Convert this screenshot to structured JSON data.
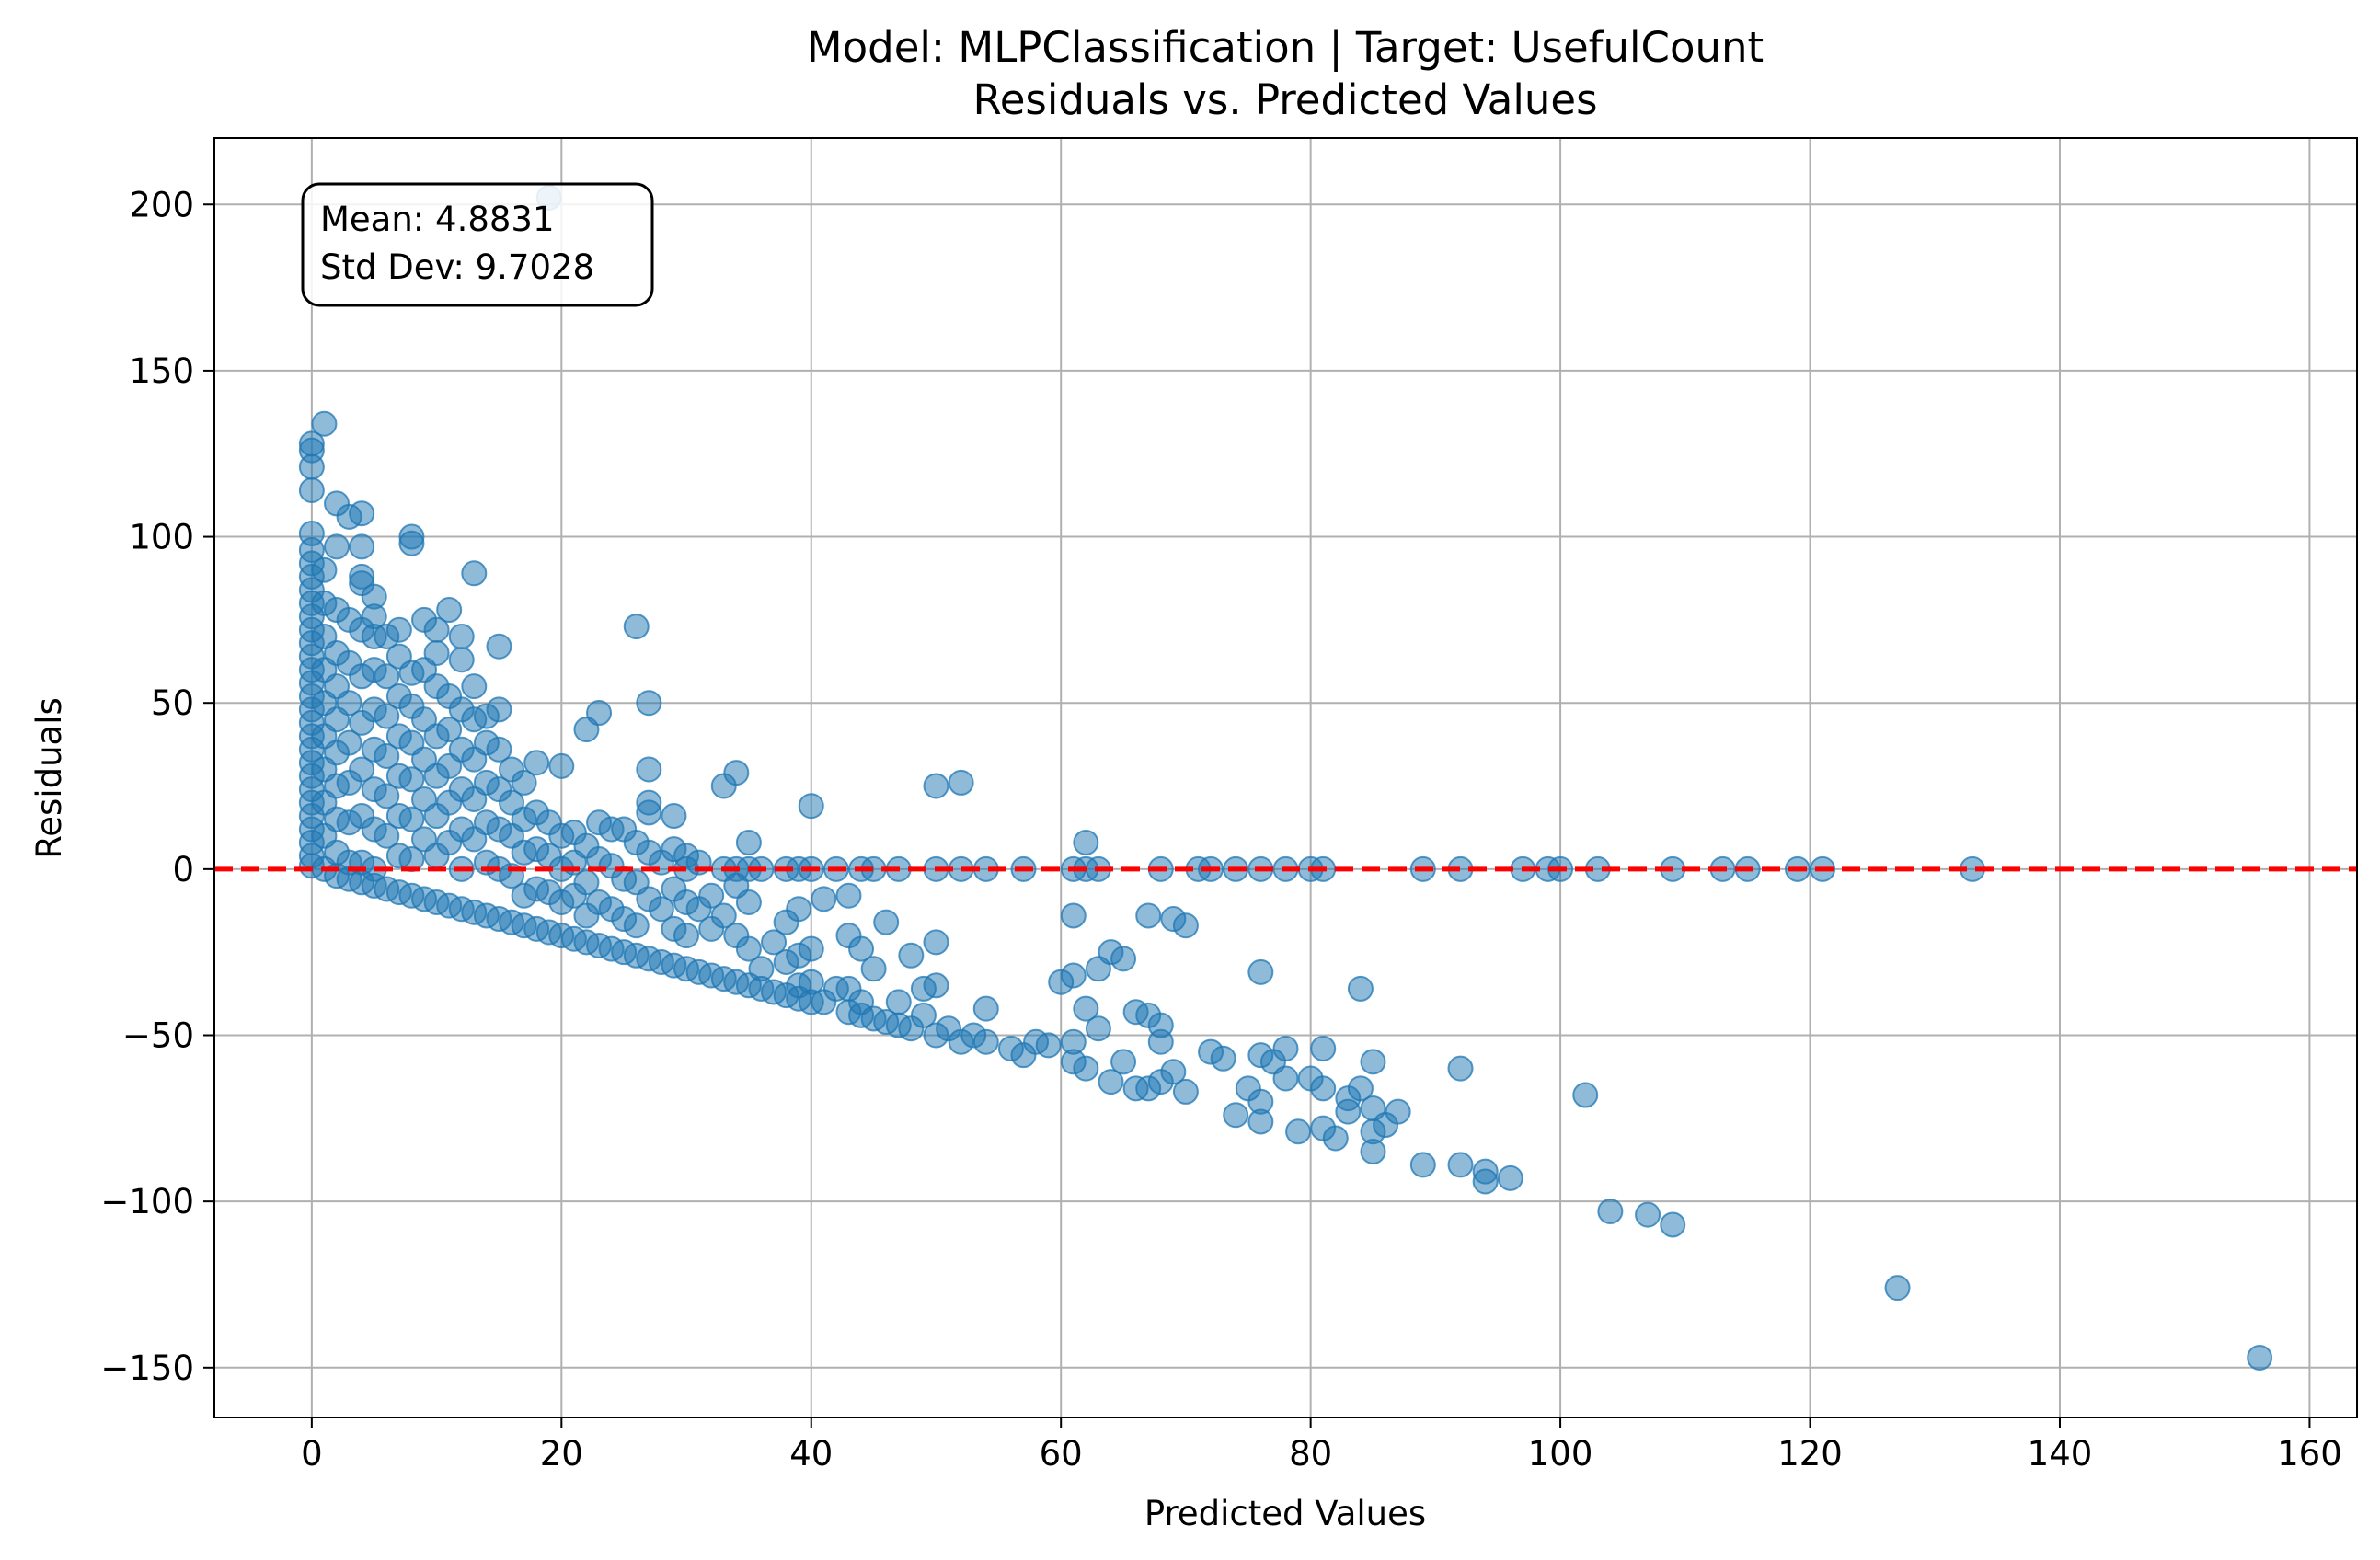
{
  "chart_data": {
    "type": "scatter",
    "title": "Model: MLPClassification | Target: UsefulCount",
    "subtitle": "Residuals vs. Predicted Values",
    "xlabel": "Predicted Values",
    "ylabel": "Residuals",
    "xlim": [
      -7.8,
      163.8
    ],
    "ylim": [
      -165,
      220
    ],
    "xticks": [
      0,
      20,
      40,
      60,
      80,
      100,
      120,
      140,
      160
    ],
    "yticks": [
      -150,
      -100,
      -50,
      0,
      50,
      100,
      150,
      200
    ],
    "xtick_labels": [
      "0",
      "20",
      "40",
      "60",
      "80",
      "100",
      "120",
      "140",
      "160"
    ],
    "ytick_labels": [
      "−150",
      "−100",
      "−50",
      "0",
      "50",
      "100",
      "150",
      "200"
    ],
    "grid": true,
    "reference_line": {
      "y": 0,
      "style": "dashed",
      "color": "#ff0000"
    },
    "annotation": {
      "line1": "Mean: 4.8831",
      "line2": "Std Dev: 9.7028",
      "placement": "top-left"
    },
    "marker_color": "#1f77b4",
    "marker_alpha": 0.5,
    "points": [
      [
        0,
        128
      ],
      [
        0,
        126
      ],
      [
        0,
        121
      ],
      [
        0,
        114
      ],
      [
        0,
        101
      ],
      [
        0,
        96
      ],
      [
        0,
        92
      ],
      [
        0,
        88
      ],
      [
        0,
        84
      ],
      [
        0,
        80
      ],
      [
        0,
        76
      ],
      [
        0,
        72
      ],
      [
        0,
        68
      ],
      [
        0,
        64
      ],
      [
        0,
        60
      ],
      [
        0,
        56
      ],
      [
        0,
        52
      ],
      [
        0,
        48
      ],
      [
        0,
        44
      ],
      [
        0,
        40
      ],
      [
        0,
        36
      ],
      [
        0,
        32
      ],
      [
        0,
        28
      ],
      [
        0,
        24
      ],
      [
        0,
        20
      ],
      [
        0,
        16
      ],
      [
        0,
        12
      ],
      [
        0,
        8
      ],
      [
        0,
        4
      ],
      [
        0,
        1
      ],
      [
        1,
        134
      ],
      [
        1,
        90
      ],
      [
        1,
        80
      ],
      [
        1,
        70
      ],
      [
        1,
        60
      ],
      [
        1,
        50
      ],
      [
        1,
        40
      ],
      [
        1,
        30
      ],
      [
        1,
        20
      ],
      [
        1,
        10
      ],
      [
        1,
        0
      ],
      [
        2,
        110
      ],
      [
        2,
        97
      ],
      [
        2,
        78
      ],
      [
        2,
        65
      ],
      [
        2,
        55
      ],
      [
        2,
        45
      ],
      [
        2,
        35
      ],
      [
        2,
        25
      ],
      [
        2,
        15
      ],
      [
        2,
        5
      ],
      [
        2,
        -2
      ],
      [
        3,
        106
      ],
      [
        3,
        75
      ],
      [
        3,
        62
      ],
      [
        3,
        50
      ],
      [
        3,
        38
      ],
      [
        3,
        26
      ],
      [
        3,
        14
      ],
      [
        3,
        2
      ],
      [
        3,
        -3
      ],
      [
        4,
        107
      ],
      [
        4,
        97
      ],
      [
        4,
        88
      ],
      [
        4,
        86
      ],
      [
        4,
        72
      ],
      [
        4,
        58
      ],
      [
        4,
        44
      ],
      [
        4,
        30
      ],
      [
        4,
        16
      ],
      [
        4,
        2
      ],
      [
        4,
        -4
      ],
      [
        5,
        82
      ],
      [
        5,
        76
      ],
      [
        5,
        70
      ],
      [
        5,
        60
      ],
      [
        5,
        48
      ],
      [
        5,
        36
      ],
      [
        5,
        24
      ],
      [
        5,
        12
      ],
      [
        5,
        0
      ],
      [
        5,
        -5
      ],
      [
        6,
        70
      ],
      [
        6,
        58
      ],
      [
        6,
        46
      ],
      [
        6,
        34
      ],
      [
        6,
        22
      ],
      [
        6,
        10
      ],
      [
        6,
        -6
      ],
      [
        7,
        72
      ],
      [
        7,
        64
      ],
      [
        7,
        52
      ],
      [
        7,
        40
      ],
      [
        7,
        28
      ],
      [
        7,
        16
      ],
      [
        7,
        4
      ],
      [
        7,
        -7
      ],
      [
        8,
        100
      ],
      [
        8,
        98
      ],
      [
        8,
        59
      ],
      [
        8,
        49
      ],
      [
        8,
        38
      ],
      [
        8,
        27
      ],
      [
        8,
        15
      ],
      [
        8,
        3
      ],
      [
        8,
        -8
      ],
      [
        9,
        75
      ],
      [
        9,
        60
      ],
      [
        9,
        45
      ],
      [
        9,
        33
      ],
      [
        9,
        21
      ],
      [
        9,
        9
      ],
      [
        9,
        -9
      ],
      [
        10,
        72
      ],
      [
        10,
        65
      ],
      [
        10,
        55
      ],
      [
        10,
        40
      ],
      [
        10,
        28
      ],
      [
        10,
        16
      ],
      [
        10,
        4
      ],
      [
        10,
        -10
      ],
      [
        11,
        78
      ],
      [
        11,
        52
      ],
      [
        11,
        42
      ],
      [
        11,
        31
      ],
      [
        11,
        20
      ],
      [
        11,
        8
      ],
      [
        11,
        -11
      ],
      [
        12,
        70
      ],
      [
        12,
        63
      ],
      [
        12,
        48
      ],
      [
        12,
        36
      ],
      [
        12,
        24
      ],
      [
        12,
        12
      ],
      [
        12,
        0
      ],
      [
        12,
        -12
      ],
      [
        13,
        89
      ],
      [
        13,
        55
      ],
      [
        13,
        45
      ],
      [
        13,
        33
      ],
      [
        13,
        21
      ],
      [
        13,
        9
      ],
      [
        13,
        -13
      ],
      [
        14,
        46
      ],
      [
        14,
        38
      ],
      [
        14,
        26
      ],
      [
        14,
        14
      ],
      [
        14,
        2
      ],
      [
        14,
        -14
      ],
      [
        15,
        67
      ],
      [
        15,
        48
      ],
      [
        15,
        36
      ],
      [
        15,
        24
      ],
      [
        15,
        12
      ],
      [
        15,
        0
      ],
      [
        15,
        -15
      ],
      [
        16,
        30
      ],
      [
        16,
        20
      ],
      [
        16,
        10
      ],
      [
        16,
        -2
      ],
      [
        16,
        -16
      ],
      [
        17,
        26
      ],
      [
        17,
        15
      ],
      [
        17,
        5
      ],
      [
        17,
        -8
      ],
      [
        17,
        -17
      ],
      [
        18,
        32
      ],
      [
        18,
        17
      ],
      [
        18,
        6
      ],
      [
        18,
        -6
      ],
      [
        18,
        -18
      ],
      [
        19,
        202
      ],
      [
        19,
        14
      ],
      [
        19,
        4
      ],
      [
        19,
        -7
      ],
      [
        19,
        -19
      ],
      [
        20,
        31
      ],
      [
        20,
        10
      ],
      [
        20,
        0
      ],
      [
        20,
        -10
      ],
      [
        20,
        -20
      ],
      [
        21,
        11
      ],
      [
        21,
        2
      ],
      [
        21,
        -8
      ],
      [
        21,
        -21
      ],
      [
        22,
        42
      ],
      [
        22,
        7
      ],
      [
        22,
        -4
      ],
      [
        22,
        -14
      ],
      [
        22,
        -22
      ],
      [
        23,
        47
      ],
      [
        23,
        14
      ],
      [
        23,
        3
      ],
      [
        23,
        -10
      ],
      [
        23,
        -23
      ],
      [
        24,
        12
      ],
      [
        24,
        1
      ],
      [
        24,
        -12
      ],
      [
        24,
        -24
      ],
      [
        25,
        12
      ],
      [
        25,
        -3
      ],
      [
        25,
        -15
      ],
      [
        25,
        -25
      ],
      [
        26,
        73
      ],
      [
        26,
        8
      ],
      [
        26,
        -4
      ],
      [
        26,
        -17
      ],
      [
        26,
        -26
      ],
      [
        27,
        50
      ],
      [
        27,
        30
      ],
      [
        27,
        20
      ],
      [
        27,
        17
      ],
      [
        27,
        5
      ],
      [
        27,
        -9
      ],
      [
        27,
        -27
      ],
      [
        28,
        2
      ],
      [
        28,
        -12
      ],
      [
        28,
        -28
      ],
      [
        29,
        16
      ],
      [
        29,
        6
      ],
      [
        29,
        -6
      ],
      [
        29,
        -18
      ],
      [
        29,
        -29
      ],
      [
        30,
        4
      ],
      [
        30,
        0
      ],
      [
        30,
        -10
      ],
      [
        30,
        -20
      ],
      [
        30,
        -30
      ],
      [
        31,
        2
      ],
      [
        31,
        -12
      ],
      [
        31,
        -31
      ],
      [
        32,
        -8
      ],
      [
        32,
        -18
      ],
      [
        32,
        -32
      ],
      [
        33,
        25
      ],
      [
        33,
        0
      ],
      [
        33,
        -14
      ],
      [
        33,
        -33
      ],
      [
        34,
        29
      ],
      [
        34,
        0
      ],
      [
        34,
        -5
      ],
      [
        34,
        -20
      ],
      [
        34,
        -34
      ],
      [
        35,
        8
      ],
      [
        35,
        0
      ],
      [
        35,
        -10
      ],
      [
        35,
        -24
      ],
      [
        35,
        -35
      ],
      [
        36,
        0
      ],
      [
        36,
        -30
      ],
      [
        36,
        -36
      ],
      [
        37,
        -22
      ],
      [
        37,
        -37
      ],
      [
        38,
        0
      ],
      [
        38,
        -16
      ],
      [
        38,
        -28
      ],
      [
        38,
        -38
      ],
      [
        39,
        0
      ],
      [
        39,
        -12
      ],
      [
        39,
        -26
      ],
      [
        39,
        -35
      ],
      [
        39,
        -39
      ],
      [
        40,
        19
      ],
      [
        40,
        0
      ],
      [
        40,
        -24
      ],
      [
        40,
        -34
      ],
      [
        40,
        -40
      ],
      [
        41,
        -9
      ],
      [
        41,
        -40
      ],
      [
        42,
        0
      ],
      [
        42,
        -36
      ],
      [
        43,
        -8
      ],
      [
        43,
        -20
      ],
      [
        43,
        -36
      ],
      [
        43,
        -43
      ],
      [
        44,
        0
      ],
      [
        44,
        -24
      ],
      [
        44,
        -40
      ],
      [
        44,
        -44
      ],
      [
        45,
        0
      ],
      [
        45,
        -30
      ],
      [
        45,
        -45
      ],
      [
        46,
        -16
      ],
      [
        46,
        -46
      ],
      [
        47,
        0
      ],
      [
        47,
        -40
      ],
      [
        47,
        -47
      ],
      [
        48,
        -26
      ],
      [
        48,
        -48
      ],
      [
        49,
        -36
      ],
      [
        49,
        -44
      ],
      [
        50,
        25
      ],
      [
        50,
        0
      ],
      [
        50,
        -22
      ],
      [
        50,
        -35
      ],
      [
        50,
        -50
      ],
      [
        51,
        -48
      ],
      [
        52,
        26
      ],
      [
        52,
        0
      ],
      [
        52,
        -52
      ],
      [
        53,
        -50
      ],
      [
        54,
        0
      ],
      [
        54,
        -42
      ],
      [
        54,
        -52
      ],
      [
        56,
        -54
      ],
      [
        57,
        0
      ],
      [
        57,
        -56
      ],
      [
        58,
        -52
      ],
      [
        59,
        -53
      ],
      [
        60,
        -34
      ],
      [
        61,
        -14
      ],
      [
        61,
        0
      ],
      [
        61,
        -32
      ],
      [
        61,
        -58
      ],
      [
        61,
        -52
      ],
      [
        62,
        8
      ],
      [
        62,
        0
      ],
      [
        62,
        -42
      ],
      [
        62,
        -60
      ],
      [
        63,
        0
      ],
      [
        63,
        -30
      ],
      [
        63,
        -48
      ],
      [
        64,
        -25
      ],
      [
        64,
        -64
      ],
      [
        65,
        -27
      ],
      [
        65,
        -58
      ],
      [
        66,
        -43
      ],
      [
        66,
        -66
      ],
      [
        67,
        -14
      ],
      [
        67,
        -44
      ],
      [
        67,
        -66
      ],
      [
        68,
        0
      ],
      [
        68,
        -47
      ],
      [
        68,
        -52
      ],
      [
        68,
        -64
      ],
      [
        69,
        -15
      ],
      [
        69,
        -61
      ],
      [
        70,
        -17
      ],
      [
        70,
        -67
      ],
      [
        71,
        0
      ],
      [
        72,
        0
      ],
      [
        72,
        -55
      ],
      [
        73,
        -57
      ],
      [
        74,
        0
      ],
      [
        74,
        -74
      ],
      [
        75,
        -66
      ],
      [
        76,
        -31
      ],
      [
        76,
        0
      ],
      [
        76,
        -56
      ],
      [
        76,
        -70
      ],
      [
        76,
        -76
      ],
      [
        77,
        -58
      ],
      [
        78,
        0
      ],
      [
        78,
        -54
      ],
      [
        78,
        -63
      ],
      [
        79,
        -79
      ],
      [
        80,
        0
      ],
      [
        80,
        -63
      ],
      [
        81,
        0
      ],
      [
        81,
        -54
      ],
      [
        81,
        -66
      ],
      [
        81,
        -78
      ],
      [
        82,
        -81
      ],
      [
        83,
        -69
      ],
      [
        83,
        -73
      ],
      [
        84,
        -36
      ],
      [
        84,
        -66
      ],
      [
        85,
        -58
      ],
      [
        85,
        -72
      ],
      [
        85,
        -79
      ],
      [
        85,
        -85
      ],
      [
        86,
        -77
      ],
      [
        87,
        -73
      ],
      [
        89,
        0
      ],
      [
        89,
        -89
      ],
      [
        92,
        0
      ],
      [
        92,
        -60
      ],
      [
        92,
        -89
      ],
      [
        94,
        -91
      ],
      [
        94,
        -94
      ],
      [
        96,
        -93
      ],
      [
        97,
        0
      ],
      [
        99,
        0
      ],
      [
        100,
        0
      ],
      [
        102,
        -68
      ],
      [
        103,
        0
      ],
      [
        104,
        -103
      ],
      [
        107,
        -104
      ],
      [
        109,
        0
      ],
      [
        109,
        -107
      ],
      [
        113,
        0
      ],
      [
        115,
        0
      ],
      [
        119,
        0
      ],
      [
        121,
        0
      ],
      [
        127,
        -126
      ],
      [
        133,
        0
      ],
      [
        156,
        -147
      ]
    ]
  }
}
